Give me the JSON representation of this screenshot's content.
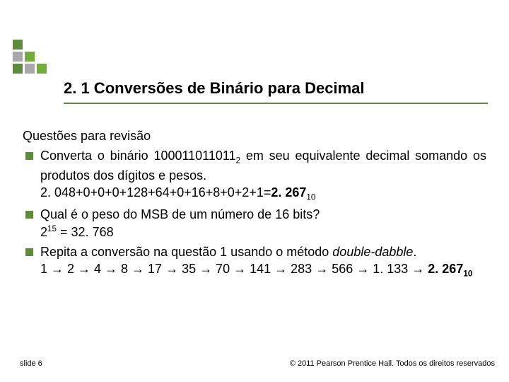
{
  "logo": {
    "colors": [
      "#5f8b3c",
      "transparent",
      "transparent",
      "#a8a8a8",
      "#73ac3e",
      "transparent",
      "#5f8b3c",
      "#a8a8a8",
      "#73ac3e"
    ]
  },
  "title": "2. 1 Conversões de Binário para Decimal",
  "underline_color": "#5f8b3c",
  "subtitle": "Questões para revisão",
  "items": [
    {
      "line1_a": "Converta o binário 100011011011",
      "line1_sub": "2",
      "line1_b": " em seu equivalente decimal somando os produtos dos dígitos e pesos.",
      "line2_a": "2. 048+0+0+0+128+64+0+16+8+0+2+1=",
      "line2_bold": "2. 267",
      "line2_sub": "10"
    },
    {
      "line1": "Qual é o peso do MSB de um número de 16 bits?",
      "line2_a": "2",
      "line2_sup": "15",
      "line2_b": " = 32. 768"
    },
    {
      "line1_a": "Repita a conversão na questão 1 usando o método ",
      "line1_italic": "double-dabble",
      "line1_b": ".",
      "line2_a": "1 → 2 → 4 → 8 → 17 → 35 → 70 → 141 → 283 → 566 → 1. 133 → ",
      "line2_bold": "2. 267",
      "line2_sub": "10"
    }
  ],
  "footer_left": "slide 6",
  "footer_right": "© 2011 Pearson Prentice Hall. Todos os direitos reservados"
}
